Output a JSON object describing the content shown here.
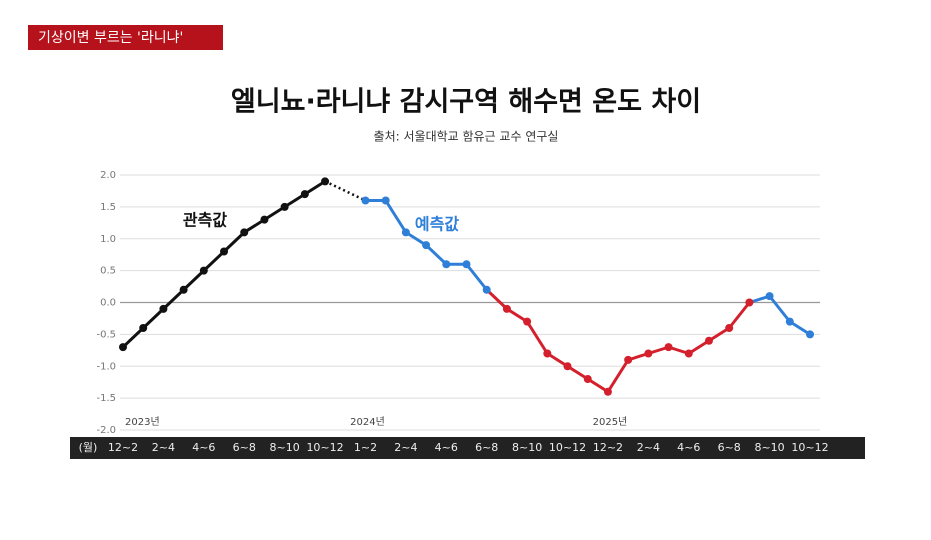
{
  "banner": "기상이변 부르는 '라니냐'",
  "chart_data": {
    "type": "line",
    "title": "엘니뇨·라니냐 감시구역 해수면 온도 차이",
    "subtitle": "출처: 서울대학교 함유근 교수 연구실",
    "x_unit": "(월)",
    "categories": [
      "12~2",
      null,
      "2~4",
      null,
      "4~6",
      null,
      "6~8",
      null,
      "8~10",
      null,
      "10~12",
      null,
      "1~2",
      null,
      "2~4",
      null,
      "4~6",
      null,
      "6~8",
      null,
      "8~10",
      null,
      "10~12",
      null,
      "12~2",
      null,
      "2~4",
      null,
      "4~6",
      null,
      "6~8",
      null,
      "8~10",
      null,
      "10~12"
    ],
    "years": [
      {
        "label": "2023년",
        "at": 0
      },
      {
        "label": "2024년",
        "at": 12
      },
      {
        "label": "2025년",
        "at": 24
      }
    ],
    "series": [
      {
        "name": "관측값",
        "color": "#111111",
        "values": [
          -0.7,
          -0.4,
          -0.1,
          0.2,
          0.5,
          0.8,
          1.1,
          1.3,
          1.5,
          1.7,
          1.9,
          null,
          null,
          null,
          null,
          null,
          null,
          null,
          null,
          null,
          null,
          null,
          null,
          null,
          null,
          null,
          null,
          null,
          null,
          null,
          null,
          null,
          null,
          null,
          null
        ]
      },
      {
        "name": "예측값",
        "color": "#2f7fd8",
        "values": [
          null,
          null,
          null,
          null,
          null,
          null,
          null,
          null,
          null,
          null,
          null,
          null,
          1.6,
          1.6,
          1.1,
          0.9,
          0.6,
          0.6,
          0.2,
          -0.1,
          -0.3,
          -0.8,
          -1.0,
          -1.2,
          -1.4,
          -0.9,
          -0.8,
          -0.7,
          -0.8,
          -0.6,
          -0.4,
          0.0,
          0.1,
          -0.3,
          -0.5
        ],
        "point_colors": [
          null,
          null,
          null,
          null,
          null,
          null,
          null,
          null,
          null,
          null,
          null,
          null,
          "#2f7fd8",
          "#2f7fd8",
          "#2f7fd8",
          "#2f7fd8",
          "#2f7fd8",
          "#2f7fd8",
          "#2f7fd8",
          "#d4202c",
          "#d4202c",
          "#d4202c",
          "#d4202c",
          "#d4202c",
          "#d4202c",
          "#d4202c",
          "#d4202c",
          "#d4202c",
          "#d4202c",
          "#d4202c",
          "#d4202c",
          "#d4202c",
          "#2f7fd8",
          "#2f7fd8",
          "#2f7fd8"
        ]
      }
    ],
    "ylim": [
      -2,
      2
    ],
    "yticks": [
      {
        "value": 2,
        "label": "2.0"
      },
      1.5,
      {
        "value": 1,
        "label": "1.0"
      },
      0.5,
      {
        "value": 0,
        "label": "0.0"
      },
      -0.5,
      {
        "value": -1,
        "label": "-1.0"
      },
      -1.5,
      {
        "value": -2,
        "label": "-2.0"
      }
    ],
    "grid": true
  }
}
